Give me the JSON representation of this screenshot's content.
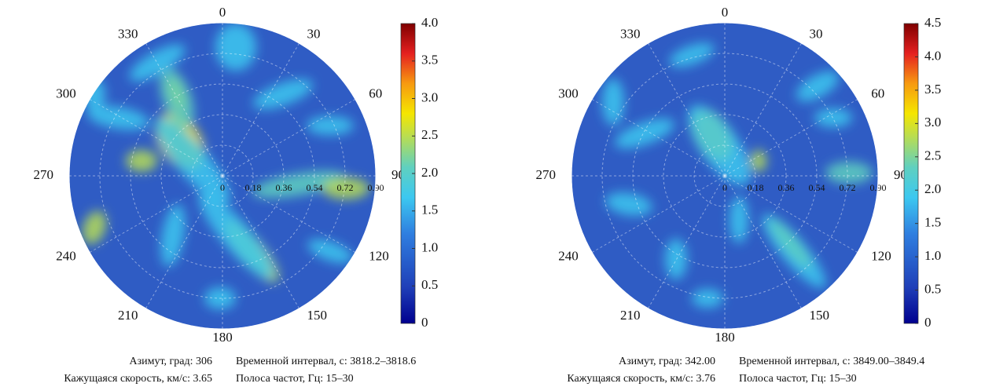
{
  "chart_data": [
    {
      "type": "polar_heatmap",
      "theta_ticks": [
        0,
        30,
        60,
        90,
        120,
        150,
        180,
        210,
        240,
        270,
        300,
        330
      ],
      "rlim": [
        0,
        0.9
      ],
      "rticks": [
        0,
        0.18,
        0.36,
        0.54,
        0.72,
        {
          "value": 0.9,
          "label": "0.90"
        }
      ],
      "clim": [
        0,
        4
      ],
      "cticks": [
        0,
        0.5,
        {
          "value": 1,
          "label": "1.0"
        },
        1.5,
        {
          "value": 2,
          "label": "2.0"
        },
        2.5,
        {
          "value": 3,
          "label": "3.0"
        },
        3.5,
        {
          "value": 4,
          "label": "4.0"
        }
      ],
      "annotations": [
        "Азимут, град: 306",
        "Временной интервал, с: 3818.2–3818.6",
        "Кажущаяся скорость, км/с: 3.65",
        "Полоса частот, Гц: 15–30"
      ]
    },
    {
      "type": "polar_heatmap",
      "theta_ticks": [
        0,
        30,
        60,
        90,
        120,
        150,
        180,
        210,
        240,
        270,
        300,
        330
      ],
      "rlim": [
        0,
        0.9
      ],
      "rticks": [
        0,
        0.18,
        0.36,
        0.54,
        0.72,
        {
          "value": 0.9,
          "label": "0.90"
        }
      ],
      "clim": [
        0,
        4.5
      ],
      "cticks": [
        0,
        0.5,
        {
          "value": 1,
          "label": "1.0"
        },
        1.5,
        {
          "value": 2,
          "label": "2.0"
        },
        2.5,
        {
          "value": 3,
          "label": "3.0"
        },
        3.5,
        {
          "value": 4,
          "label": "4.0"
        },
        4.5
      ],
      "annotations": [
        "Азимут, град: 342.00",
        "Временной интервал, с: 3849.00–3849.4",
        "Кажущаяся скорость, км/с: 3.76",
        "Полоса частот, Гц: 15–30"
      ]
    }
  ]
}
